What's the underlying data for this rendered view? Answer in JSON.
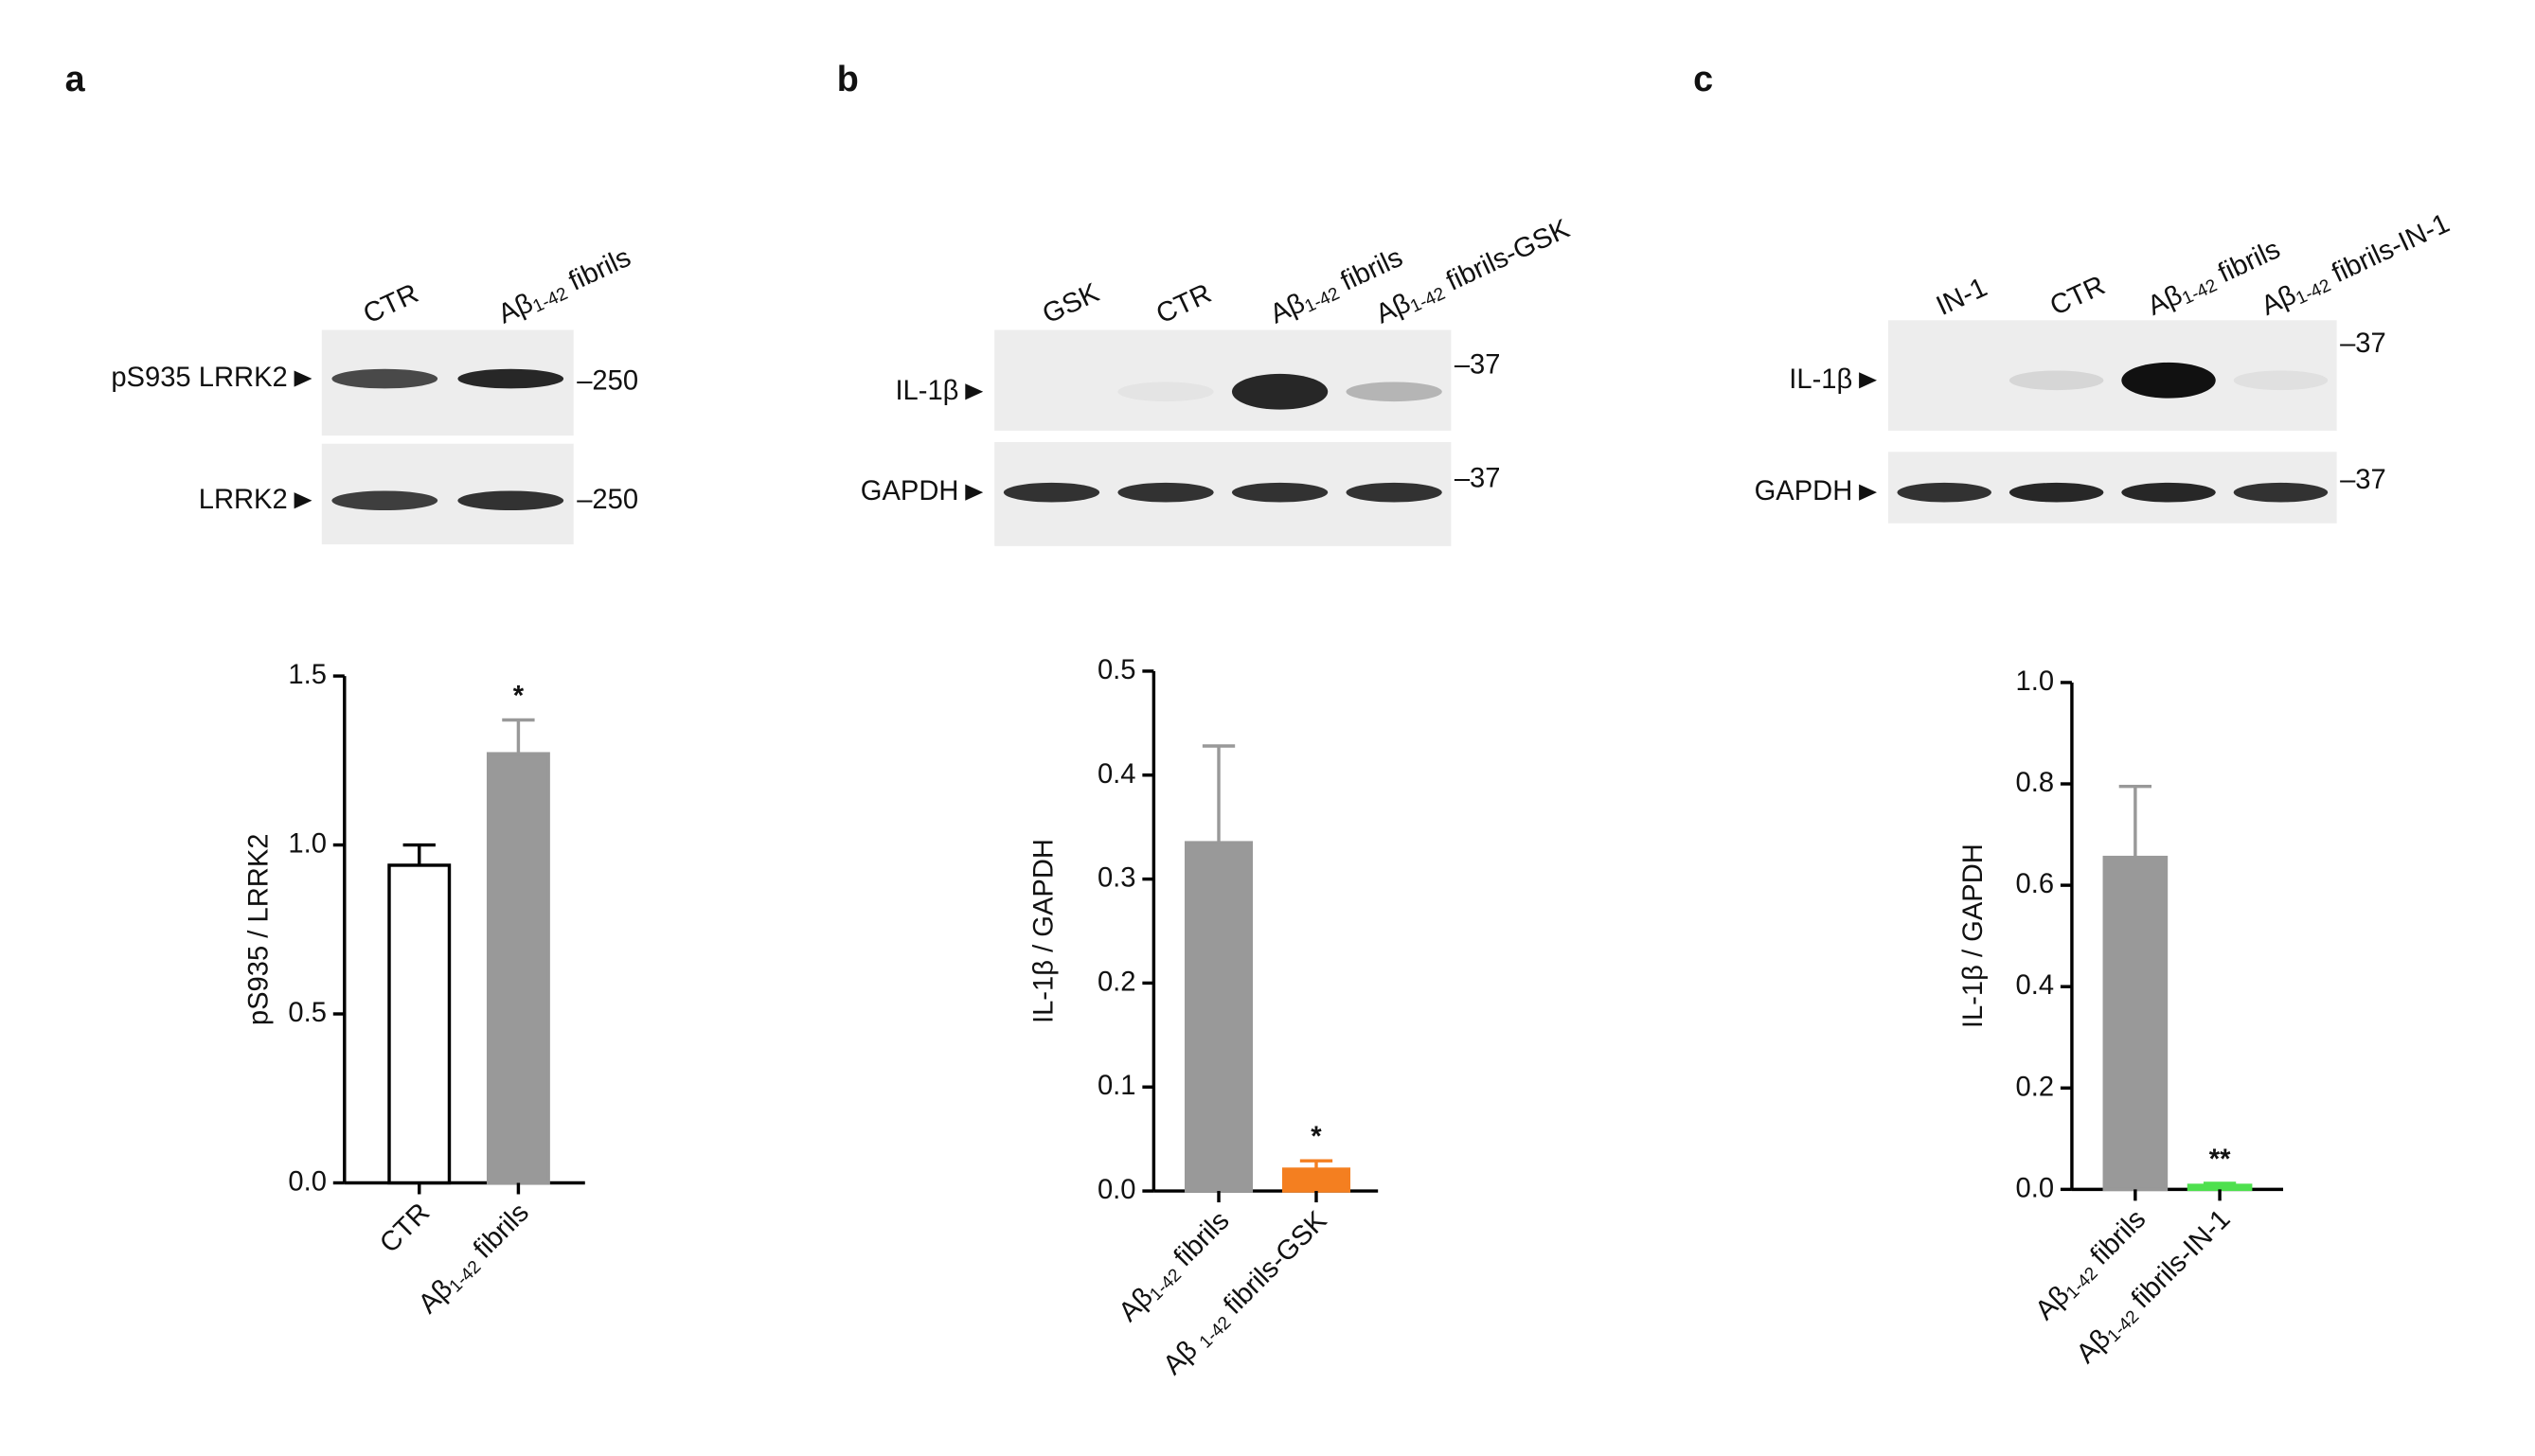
{
  "panel_labels": [
    "a",
    "b",
    "c"
  ],
  "blots": [
    {
      "lanes": [
        "CTR",
        "Aβ1-42 fibrils"
      ],
      "rows": [
        {
          "label": "pS935 LRRK2",
          "marker": "–250"
        },
        {
          "label": "LRRK2",
          "marker": "–250"
        }
      ]
    },
    {
      "lanes": [
        "GSK",
        "CTR",
        "Aβ1-42 fibrils",
        "Aβ1-42 fibrils-GSK"
      ],
      "rows": [
        {
          "label": "IL-1β",
          "marker": "–37"
        },
        {
          "label": "GAPDH",
          "marker": "–37"
        }
      ]
    },
    {
      "lanes": [
        "IN-1",
        "CTR",
        "Aβ1-42 fibrils",
        "Aβ1-42 fibrils-IN-1"
      ],
      "rows": [
        {
          "label": "IL-1β",
          "marker": "–37"
        },
        {
          "label": "GAPDH",
          "marker": "–37"
        }
      ]
    }
  ],
  "chart_data": [
    {
      "type": "bar",
      "ylabel": "pS935 / LRRK2",
      "categories": [
        "CTR",
        "Aβ1-42 fibrils"
      ],
      "values": [
        0.94,
        1.27
      ],
      "errors": [
        0.06,
        0.1
      ],
      "colors": [
        "#ffffff",
        "#999999"
      ],
      "edgecolors": [
        "#000000",
        "#999999"
      ],
      "significance": [
        null,
        "*"
      ],
      "ylim": [
        0,
        1.5
      ],
      "yticks": [
        {
          "value": 0,
          "label": "0.0"
        },
        0.5,
        {
          "value": 1,
          "label": "1.0"
        },
        1.5
      ]
    },
    {
      "type": "bar",
      "ylabel": "IL-1β / GAPDH",
      "categories": [
        "Aβ1-42 fibrils",
        "Aβ 1-42 fibrils-GSK"
      ],
      "values": [
        0.335,
        0.021
      ],
      "errors": [
        0.093,
        0.008
      ],
      "colors": [
        "#999999",
        "#f47f20"
      ],
      "edgecolors": [
        "#999999",
        "#f47f20"
      ],
      "significance": [
        null,
        "*"
      ],
      "ylim": [
        0,
        0.5
      ],
      "yticks": [
        {
          "value": 0,
          "label": "0.0"
        },
        0.1,
        0.2,
        0.3,
        0.4,
        0.5
      ]
    },
    {
      "type": "bar",
      "ylabel": "IL-1β / GAPDH",
      "categories": [
        "Aβ1-42 fibrils",
        "Aβ1-42 fibrils-IN-1"
      ],
      "values": [
        0.655,
        0.008
      ],
      "errors": [
        0.14,
        0.004
      ],
      "colors": [
        "#999999",
        "#4ee04e"
      ],
      "edgecolors": [
        "#999999",
        "#4ee04e"
      ],
      "significance": [
        null,
        "**"
      ],
      "ylim": [
        0,
        1
      ],
      "yticks": [
        {
          "value": 0,
          "label": "0.0"
        },
        0.2,
        0.4,
        0.6,
        0.8,
        {
          "value": 1,
          "label": "1.0"
        }
      ]
    }
  ]
}
